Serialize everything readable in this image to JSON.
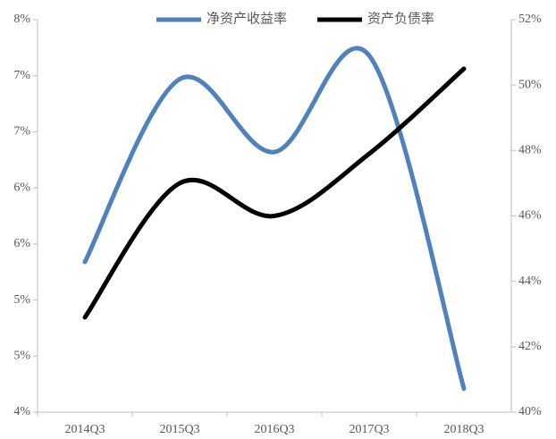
{
  "chart_data": {
    "type": "line",
    "categories": [
      "2014Q3",
      "2015Q3",
      "2016Q3",
      "2017Q3",
      "2018Q3"
    ],
    "series": [
      {
        "name": "净资产收益率",
        "color": "#4f81bd",
        "values": [
          5.34,
          6.97,
          6.32,
          7.18,
          4.21
        ]
      },
      {
        "name": "资产负债率",
        "color": "#000000",
        "axis": "y2",
        "values": [
          42.9,
          47.0,
          46.0,
          47.9,
          50.5
        ]
      }
    ],
    "ylim": [
      4,
      7.5
    ],
    "yticks": [
      {
        "value": 4,
        "label": "4%"
      },
      {
        "value": 4.5,
        "label": "5%"
      },
      {
        "value": 5,
        "label": "5%"
      },
      {
        "value": 5.5,
        "label": "6%"
      },
      {
        "value": 6,
        "label": "6%"
      },
      {
        "value": 6.5,
        "label": "7%"
      },
      {
        "value": 7,
        "label": "7%"
      },
      {
        "value": 7.5,
        "label": "8%"
      }
    ],
    "y2lim": [
      40,
      52
    ],
    "y2ticks": [
      {
        "value": 40,
        "label": "40%"
      },
      {
        "value": 42,
        "label": "42%"
      },
      {
        "value": 44,
        "label": "44%"
      },
      {
        "value": 46,
        "label": "46%"
      },
      {
        "value": 48,
        "label": "48%"
      },
      {
        "value": 50,
        "label": "50%"
      },
      {
        "value": 52,
        "label": "52%"
      }
    ],
    "smooth": true,
    "legend": "top"
  }
}
